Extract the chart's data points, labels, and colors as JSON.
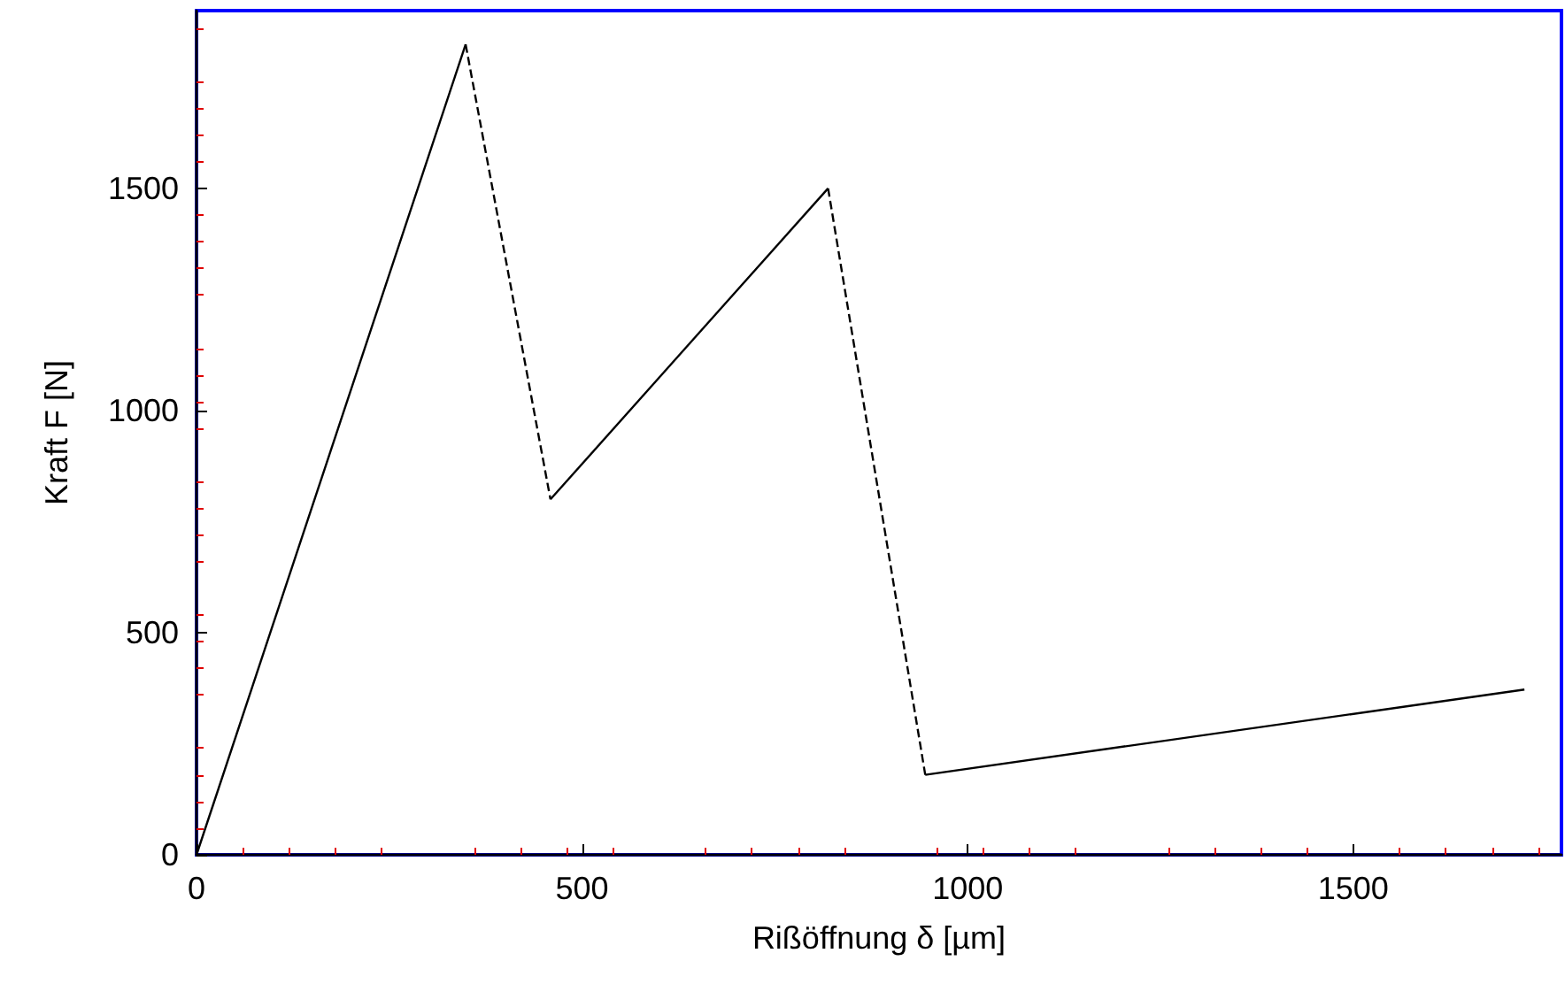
{
  "chart_data": {
    "type": "line",
    "xlabel": "Rißöffnung δ [µm]",
    "ylabel": "Kraft F [N]",
    "xlim": [
      0,
      1770
    ],
    "ylim": [
      0,
      1900
    ],
    "xticks": [
      0,
      500,
      1000,
      1500
    ],
    "yticks": [
      0,
      500,
      1000,
      1500
    ],
    "grid": false,
    "marker": "none",
    "series": [
      {
        "color": "#000000",
        "line_style": "solid",
        "x": [
          0,
          349
        ],
        "values": [
          0,
          1824
        ]
      },
      {
        "color": "#000000",
        "line_style": "dashed",
        "x": [
          349,
          459
        ],
        "values": [
          1824,
          800
        ]
      },
      {
        "color": "#000000",
        "line_style": "solid",
        "x": [
          459,
          819
        ],
        "values": [
          800,
          1500
        ]
      },
      {
        "color": "#000000",
        "line_style": "dashed",
        "x": [
          819,
          945
        ],
        "values": [
          1500,
          180
        ]
      },
      {
        "color": "#000000",
        "line_style": "solid",
        "x": [
          945,
          1722
        ],
        "values": [
          180,
          372
        ]
      }
    ]
  }
}
